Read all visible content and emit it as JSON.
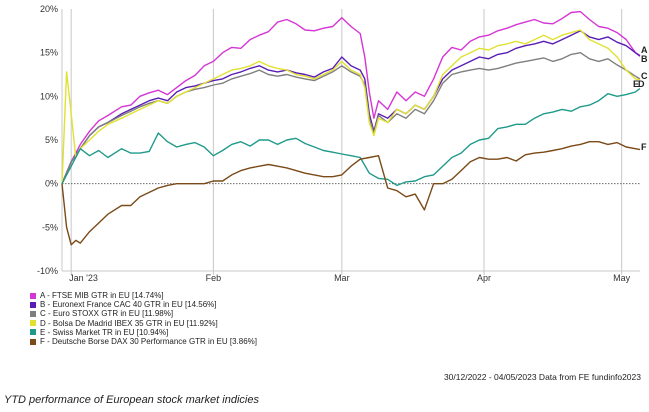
{
  "chart_data": {
    "type": "line",
    "ylim": [
      -10,
      20
    ],
    "y_ticks": [
      "20%",
      "15%",
      "10%",
      "5%",
      "0%",
      "-5%",
      "-10%"
    ],
    "y_tick_values": [
      20,
      15,
      10,
      5,
      0,
      -5,
      -10
    ],
    "x_ticks": [
      {
        "label": "Jan '23",
        "day": 1
      },
      {
        "label": "Feb",
        "day": 32
      },
      {
        "label": "Mar",
        "day": 60
      },
      {
        "label": "Apr",
        "day": 91
      },
      {
        "label": "May",
        "day": 121
      }
    ],
    "x_range_days": [
      -1,
      125
    ],
    "grid": "vertical at month starts, dotted zero line",
    "series": [
      {
        "name": "A - FTSE MIB GTR in EU [14.74%]",
        "end_label": "A",
        "color": "#d535d5",
        "x": [
          -1,
          1,
          3,
          5,
          7,
          9,
          12,
          14,
          16,
          18,
          20,
          22,
          24,
          26,
          28,
          30,
          32,
          34,
          36,
          38,
          40,
          42,
          44,
          46,
          48,
          50,
          52,
          54,
          56,
          58,
          60,
          62,
          64,
          65,
          66,
          67,
          68,
          70,
          72,
          74,
          76,
          78,
          80,
          82,
          84,
          86,
          88,
          90,
          92,
          94,
          96,
          98,
          100,
          102,
          104,
          106,
          108,
          110,
          112,
          114,
          116,
          118,
          120,
          122,
          124,
          125
        ],
        "y": [
          0,
          2.5,
          4.5,
          6.0,
          7.2,
          7.8,
          8.8,
          9.0,
          10.0,
          10.4,
          10.7,
          10.2,
          11.0,
          11.8,
          12.4,
          13.5,
          14.0,
          15.0,
          15.6,
          15.5,
          16.5,
          17.0,
          17.4,
          18.5,
          18.8,
          18.3,
          17.6,
          17.5,
          17.8,
          18.0,
          19.0,
          18.0,
          17.2,
          14.5,
          10.5,
          7.5,
          9.5,
          8.5,
          10.5,
          9.5,
          10.5,
          10.0,
          12.0,
          14.5,
          15.6,
          15.3,
          16.3,
          16.8,
          17.0,
          17.5,
          17.8,
          18.2,
          18.5,
          18.8,
          18.4,
          18.3,
          18.9,
          19.6,
          19.7,
          18.8,
          18.0,
          17.8,
          17.3,
          16.5,
          15.0,
          14.7
        ]
      },
      {
        "name": "B - Euronext France CAC 40 GTR in EU [14.56%]",
        "end_label": "B",
        "color": "#5a1eb4",
        "x": [
          -1,
          1,
          3,
          5,
          7,
          9,
          12,
          14,
          16,
          18,
          20,
          22,
          24,
          26,
          28,
          30,
          32,
          34,
          36,
          38,
          40,
          42,
          44,
          46,
          48,
          50,
          52,
          54,
          56,
          58,
          60,
          62,
          64,
          65,
          66,
          67,
          68,
          70,
          72,
          74,
          76,
          78,
          80,
          82,
          84,
          86,
          88,
          90,
          92,
          94,
          96,
          98,
          100,
          102,
          104,
          106,
          108,
          110,
          112,
          114,
          116,
          118,
          120,
          122,
          124,
          125
        ],
        "y": [
          0,
          2.5,
          4.0,
          5.5,
          6.5,
          7.0,
          8.0,
          8.5,
          9.0,
          9.5,
          9.8,
          9.5,
          10.5,
          11.0,
          11.2,
          11.5,
          11.8,
          12.0,
          12.5,
          12.8,
          13.2,
          13.5,
          13.0,
          12.8,
          13.0,
          12.7,
          12.5,
          12.2,
          12.8,
          13.2,
          14.5,
          13.5,
          13.0,
          12.0,
          8.0,
          6.0,
          8.0,
          7.5,
          8.5,
          8.0,
          9.0,
          8.5,
          10.0,
          12.0,
          13.0,
          13.5,
          14.0,
          14.5,
          14.3,
          14.8,
          15.0,
          15.5,
          15.8,
          16.0,
          16.3,
          16.0,
          16.5,
          17.0,
          17.5,
          16.8,
          16.5,
          16.8,
          16.2,
          15.8,
          15.0,
          14.6
        ]
      },
      {
        "name": "C - Euro STOXX GTR in EU [11.98%]",
        "end_label": "C",
        "color": "#7f7f7f",
        "x": [
          -1,
          1,
          3,
          5,
          7,
          9,
          12,
          14,
          16,
          18,
          20,
          22,
          24,
          26,
          28,
          30,
          32,
          34,
          36,
          38,
          40,
          42,
          44,
          46,
          48,
          50,
          52,
          54,
          56,
          58,
          60,
          62,
          64,
          65,
          66,
          67,
          68,
          70,
          72,
          74,
          76,
          78,
          80,
          82,
          84,
          86,
          88,
          90,
          92,
          94,
          96,
          98,
          100,
          102,
          104,
          106,
          108,
          110,
          112,
          114,
          116,
          118,
          120,
          122,
          124,
          125
        ],
        "y": [
          0,
          2.5,
          4.0,
          5.5,
          6.5,
          7.0,
          7.8,
          8.3,
          8.8,
          9.2,
          9.5,
          9.2,
          10.0,
          10.5,
          10.8,
          11.0,
          11.3,
          11.5,
          12.0,
          12.3,
          12.6,
          13.0,
          12.5,
          12.3,
          12.5,
          12.2,
          12.0,
          11.8,
          12.3,
          12.8,
          13.5,
          12.8,
          12.3,
          11.3,
          7.5,
          5.8,
          7.8,
          7.0,
          8.0,
          7.5,
          8.5,
          8.0,
          9.5,
          11.5,
          12.5,
          12.8,
          13.0,
          13.2,
          13.0,
          13.2,
          13.5,
          13.8,
          14.0,
          14.2,
          14.4,
          14.0,
          14.3,
          14.8,
          15.0,
          14.3,
          14.0,
          14.3,
          13.6,
          13.0,
          12.3,
          12.0
        ]
      },
      {
        "name": "D - Bolsa De Madrid IBEX 35 GTR in EU [11.92%]",
        "end_label": "D",
        "color": "#e1e132",
        "x": [
          -1,
          0,
          1,
          2,
          3,
          5,
          7,
          9,
          12,
          14,
          16,
          18,
          20,
          22,
          24,
          26,
          28,
          30,
          32,
          34,
          36,
          38,
          40,
          42,
          44,
          46,
          48,
          50,
          52,
          54,
          56,
          58,
          60,
          62,
          64,
          65,
          66,
          67,
          68,
          70,
          72,
          74,
          76,
          78,
          80,
          82,
          84,
          86,
          88,
          90,
          92,
          94,
          96,
          98,
          100,
          102,
          104,
          106,
          108,
          110,
          112,
          114,
          116,
          118,
          120,
          122,
          124,
          125
        ],
        "y": [
          0,
          12.8,
          8.0,
          3.0,
          4.0,
          5.0,
          6.0,
          6.8,
          7.5,
          8.0,
          8.5,
          9.0,
          9.5,
          9.2,
          10.0,
          10.5,
          11.0,
          11.5,
          12.0,
          12.5,
          13.0,
          13.2,
          13.5,
          14.0,
          13.5,
          13.2,
          13.0,
          12.5,
          12.3,
          12.0,
          12.5,
          13.0,
          14.0,
          13.0,
          12.5,
          11.0,
          7.0,
          5.5,
          7.5,
          7.0,
          8.5,
          8.0,
          9.0,
          8.5,
          10.0,
          12.5,
          13.5,
          14.5,
          15.0,
          15.5,
          15.3,
          15.8,
          16.0,
          16.3,
          16.0,
          16.5,
          17.0,
          16.5,
          17.0,
          17.3,
          17.6,
          16.5,
          16.0,
          15.5,
          14.5,
          13.0,
          12.0,
          11.9
        ]
      },
      {
        "name": "E - Swiss Market TR in EU [10.94%]",
        "end_label": "E",
        "color": "#1f9a8a",
        "x": [
          -1,
          1,
          3,
          5,
          7,
          9,
          12,
          14,
          16,
          18,
          20,
          22,
          24,
          26,
          28,
          30,
          32,
          34,
          36,
          38,
          40,
          42,
          44,
          46,
          48,
          50,
          52,
          54,
          56,
          58,
          60,
          62,
          64,
          66,
          68,
          70,
          72,
          74,
          76,
          78,
          80,
          82,
          84,
          86,
          88,
          90,
          92,
          94,
          96,
          98,
          100,
          102,
          104,
          106,
          108,
          110,
          112,
          114,
          116,
          118,
          120,
          122,
          124,
          125
        ],
        "y": [
          0,
          2.0,
          4.0,
          3.2,
          3.8,
          3.0,
          4.0,
          3.5,
          3.5,
          3.7,
          5.8,
          4.8,
          4.2,
          4.5,
          4.7,
          4.2,
          3.2,
          3.8,
          4.5,
          4.8,
          4.3,
          5.0,
          5.0,
          4.5,
          5.0,
          5.2,
          4.6,
          4.2,
          3.8,
          3.6,
          3.4,
          3.2,
          3.0,
          1.2,
          0.6,
          0.5,
          -0.2,
          0.2,
          0.3,
          0.8,
          1.0,
          2.0,
          3.0,
          3.5,
          4.5,
          5.0,
          5.2,
          6.3,
          6.5,
          6.8,
          6.8,
          7.5,
          8.0,
          8.2,
          8.5,
          8.3,
          8.8,
          9.0,
          9.5,
          10.3,
          10.0,
          10.2,
          10.5,
          10.9
        ]
      },
      {
        "name": "F - Deutsche Borse DAX 30 Performance GTR in EU [3.86%]",
        "end_label": "F",
        "color": "#7a4a18",
        "x": [
          -1,
          0,
          1,
          2,
          3,
          5,
          7,
          9,
          12,
          14,
          16,
          18,
          20,
          22,
          24,
          26,
          28,
          30,
          32,
          34,
          36,
          38,
          40,
          42,
          44,
          46,
          48,
          50,
          52,
          54,
          56,
          58,
          60,
          62,
          64,
          66,
          68,
          70,
          72,
          74,
          76,
          78,
          80,
          82,
          84,
          86,
          88,
          90,
          92,
          94,
          96,
          98,
          100,
          102,
          104,
          106,
          108,
          110,
          112,
          114,
          116,
          118,
          120,
          122,
          124,
          125
        ],
        "y": [
          0,
          -5.0,
          -7.0,
          -6.5,
          -6.8,
          -5.5,
          -4.5,
          -3.5,
          -2.5,
          -2.5,
          -1.5,
          -1.0,
          -0.5,
          -0.2,
          0,
          0,
          0,
          0,
          0.3,
          0.3,
          1.0,
          1.5,
          1.8,
          2.0,
          2.2,
          2.0,
          1.8,
          1.5,
          1.2,
          1.0,
          0.8,
          0.8,
          1.0,
          2.0,
          2.8,
          3.0,
          3.2,
          -0.5,
          -0.8,
          -1.5,
          -1.2,
          -3.0,
          0,
          0,
          0.5,
          1.5,
          2.5,
          3.0,
          2.8,
          2.8,
          3.0,
          2.6,
          3.3,
          3.5,
          3.6,
          3.8,
          4.0,
          4.3,
          4.5,
          4.8,
          4.8,
          4.5,
          4.7,
          4.2,
          4.0,
          3.9
        ]
      }
    ]
  },
  "source_text": "30/12/2022 - 04/05/2023 Data from FE fundinfo2023",
  "caption": "YTD performance of European stock market indicies"
}
